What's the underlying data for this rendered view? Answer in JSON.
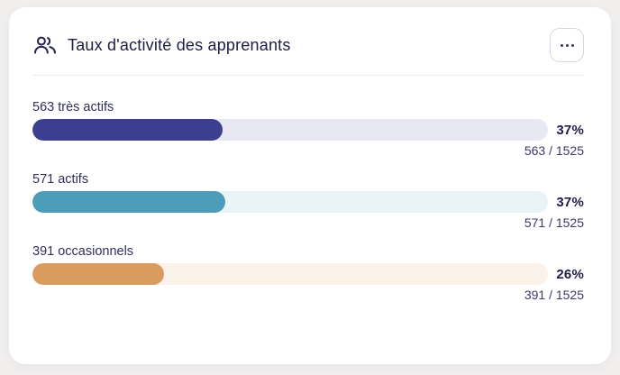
{
  "header": {
    "title": "Taux d'activité des apprenants",
    "icon": "users-icon",
    "menu_button_icon": "ellipsis-icon"
  },
  "colors": {
    "page_background": "#f1efee",
    "card_background": "#ffffff",
    "title_text": "#1d1c44",
    "label_text": "#302f5e",
    "divider": "#ebebeb"
  },
  "rows": [
    {
      "label": "563 très actifs",
      "value": 563,
      "total": 1525,
      "percent_label": "37%",
      "fraction_label": "563 / 1525",
      "fill_color": "#3c3f8f",
      "track_color": "#e8e8f3"
    },
    {
      "label": "571 actifs",
      "value": 571,
      "total": 1525,
      "percent_label": "37%",
      "fraction_label": "571 / 1525",
      "fill_color": "#4b9db8",
      "track_color": "#eaf4f7"
    },
    {
      "label": "391 occasionnels",
      "value": 391,
      "total": 1525,
      "percent_label": "26%",
      "fraction_label": "391 / 1525",
      "fill_color": "#da9b5e",
      "track_color": "#faf1e8"
    }
  ],
  "chart_data": {
    "type": "bar",
    "orientation": "horizontal",
    "title": "Taux d'activité des apprenants",
    "categories": [
      "très actifs",
      "actifs",
      "occasionnels"
    ],
    "values": [
      563,
      571,
      391
    ],
    "total": 1525,
    "percent_labels": [
      "37%",
      "37%",
      "26%"
    ],
    "bar_colors": [
      "#3c3f8f",
      "#4b9db8",
      "#da9b5e"
    ],
    "xlim": [
      0,
      1525
    ],
    "legend": false,
    "grid": false
  }
}
